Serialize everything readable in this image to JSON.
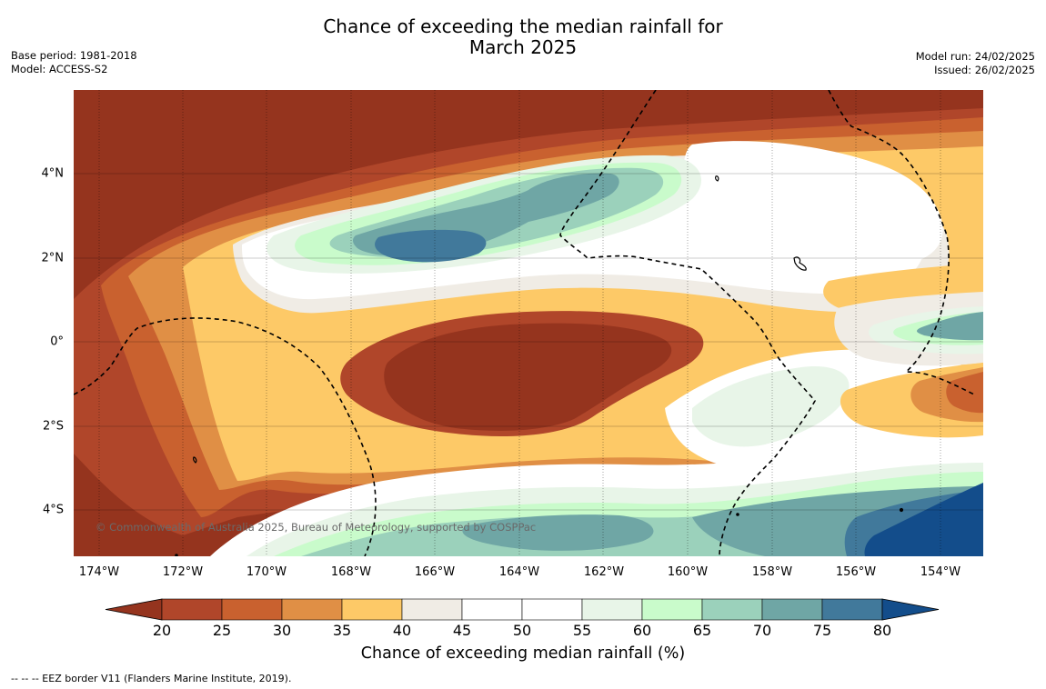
{
  "title_line1": "Chance of exceeding the median rainfall for",
  "title_line2": "March 2025",
  "meta_left": {
    "base_period": "Base period: 1981-2018",
    "model": "Model: ACCESS-S2"
  },
  "meta_right": {
    "model_run": "Model run: 24/02/2025",
    "issued": "Issued: 26/02/2025"
  },
  "copyright": "© Commonwealth of Australia 2025, Bureau of Meteorology, supported by COSPPac",
  "lon_labels": [
    "174°W",
    "172°W",
    "170°W",
    "168°W",
    "166°W",
    "164°W",
    "162°W",
    "160°W",
    "158°W",
    "156°W",
    "154°W"
  ],
  "lat_labels": [
    "4°N",
    "2°N",
    "0°",
    "2°S",
    "4°S"
  ],
  "colorbar": {
    "ticks": [
      "20",
      "25",
      "30",
      "35",
      "40",
      "45",
      "50",
      "55",
      "60",
      "65",
      "70",
      "75",
      "80"
    ],
    "colors": [
      "#95341e",
      "#b0462a",
      "#c9612f",
      "#e08f45",
      "#fdc967",
      "#f0ece5",
      "#ffffff",
      "#ffffff",
      "#e8f5e8",
      "#c9fbcb",
      "#9bd1bb",
      "#6fa6a5",
      "#41799b",
      "#134d8b"
    ],
    "title": "Chance of exceeding median rainfall (%)"
  },
  "footnote": "--  --  -- EEZ border V11 (Flanders Marine Institute, 2019).",
  "icons": {
    "island": "island-outline-icon"
  }
}
